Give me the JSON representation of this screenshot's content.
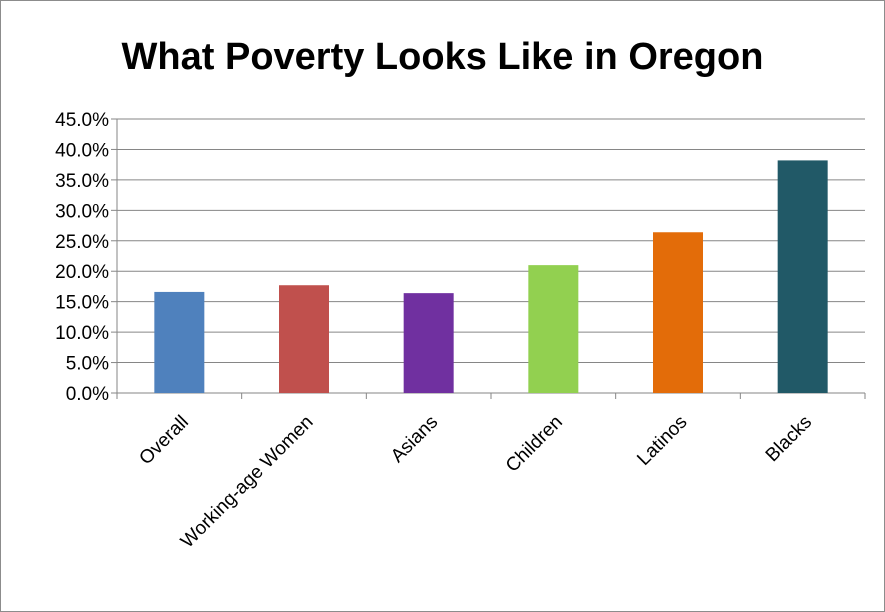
{
  "chart_data": {
    "type": "bar",
    "title": "What Poverty Looks Like in Oregon",
    "xlabel": "",
    "ylabel": "",
    "categories": [
      "Overall",
      "Working-age Women",
      "Asians",
      "Children",
      "Latinos",
      "Blacks"
    ],
    "values": [
      16.6,
      17.7,
      16.4,
      21.0,
      26.4,
      38.2
    ],
    "value_unit": "percent",
    "colors": [
      "#4f81bd",
      "#c0504d",
      "#7030a0",
      "#92d050",
      "#e36c09",
      "#215967"
    ],
    "ylim": [
      0,
      45
    ],
    "y_ticks": [
      0,
      5,
      10,
      15,
      20,
      25,
      30,
      35,
      40,
      45
    ],
    "y_tick_labels": [
      "0.0%",
      "5.0%",
      "10.0%",
      "15.0%",
      "20.0%",
      "25.0%",
      "30.0%",
      "35.0%",
      "40.0%",
      "45.0%"
    ],
    "grid": true,
    "legend": "none"
  }
}
